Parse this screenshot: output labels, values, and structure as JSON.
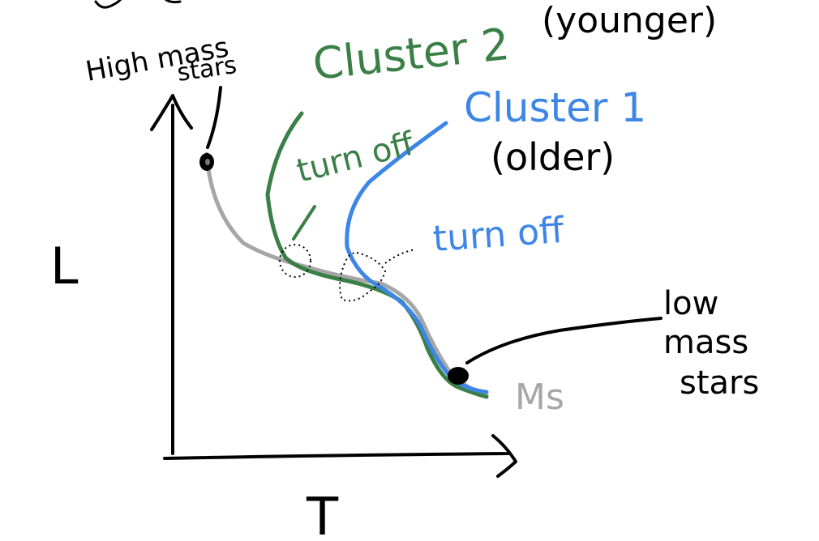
{
  "labels": {
    "y_axis": "L",
    "x_axis": "T",
    "high_mass": [
      "High mass",
      "stars"
    ],
    "low_mass": [
      "low",
      "mass",
      "stars"
    ],
    "main_sequence": "Ms",
    "cluster2": "Cluster 2",
    "cluster2_note": "(younger)",
    "cluster1": "Cluster 1",
    "cluster1_note": "(older)",
    "turnoff_cluster2": "turn off",
    "turnoff_cluster1": "turn off"
  },
  "colors": {
    "ink": "#000000",
    "main_sequence": "#a6a6a6",
    "cluster2": "#3a7f45",
    "cluster1": "#3d86e6",
    "background": "#ffffff"
  }
}
